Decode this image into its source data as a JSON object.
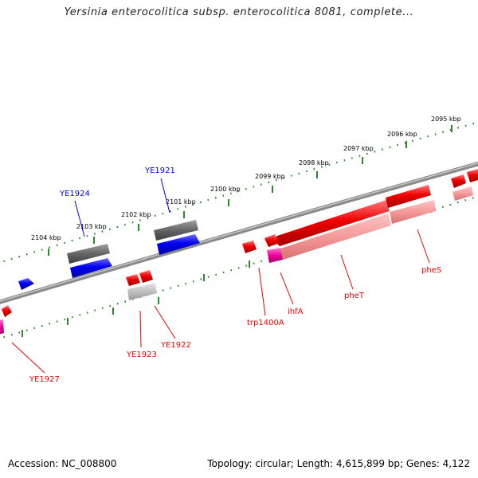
{
  "title": "Yersinia enterocolitica subsp. enterocolitica 8081, complete...",
  "footer": {
    "accession": "Accession: NC_008800",
    "summary": "Topology: circular; Length: 4,615,899 bp; Genes: 4,122"
  },
  "colors": {
    "forward_strand": "#0000ee",
    "reverse_strand": "#ee0000",
    "pseudogene": "#666666",
    "rna": "#ee0099",
    "tick": "#2a8a2a",
    "backbone": "#888888"
  },
  "kbp_labels": [
    "2095 kbp",
    "2096 kbp",
    "2097 kbp",
    "2098 kbp",
    "2099 kbp",
    "2100 kbp",
    "2101 kbp",
    "2102 kbp",
    "2103 kbp",
    "2104 kbp"
  ],
  "genes": {
    "forward": [
      "YE1921",
      "YE1924"
    ],
    "reverse": [
      "pheS",
      "pheT",
      "ihfA",
      "trp1400A",
      "YE1922",
      "YE1923",
      "YE1927"
    ]
  }
}
